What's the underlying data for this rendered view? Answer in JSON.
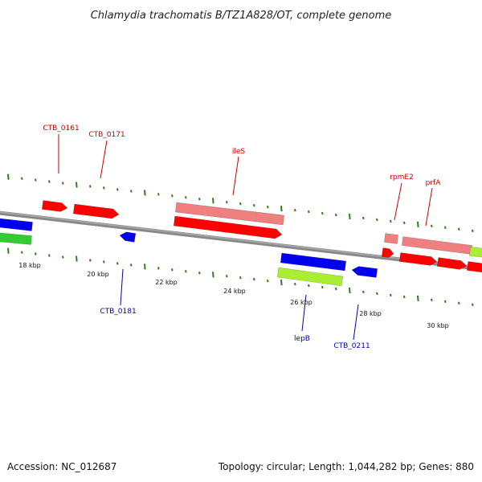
{
  "title": "Chlamydia trachomatis B/TZ1A828/OT, complete genome",
  "footer": {
    "accession": "Accession: NC_012687",
    "summary": "Topology: circular; Length: 1,044,282 bp; Genes: 880"
  },
  "colors": {
    "plus_label": "#cc0000",
    "minus_label": "#0000aa",
    "backbone": "#888888",
    "tick": "#2e7d1e",
    "red": "#ff0000",
    "pink": "#f08080",
    "blue": "#0000ee",
    "green": "#33cc33",
    "lime": "#aaee33"
  },
  "scale": [
    "18 kbp",
    "20 kbp",
    "22 kbp",
    "24 kbp",
    "26 kbp",
    "28 kbp",
    "30 kbp"
  ],
  "labels_plus": [
    "CTB_0161",
    "CTB_0171",
    "ileS",
    "rpmE2",
    "prfA"
  ],
  "labels_minus": [
    "CTB_0181",
    "lepB",
    "CTB_0211"
  ]
}
